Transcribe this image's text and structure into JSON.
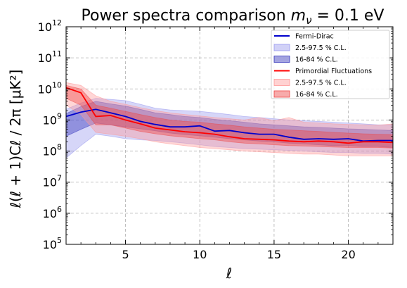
{
  "chart_data": {
    "type": "line",
    "title": "Power spectra comparison mν = 0.1 eV",
    "title_parts": {
      "text": "Power spectra comparison ",
      "math_base": "m",
      "math_sub": "ν",
      "math_rest": " = 0.1 eV"
    },
    "xlabel": "ℓ",
    "ylabel": "ℓ(ℓ + 1)Cℓ / 2π [μK²]",
    "xlim": [
      1,
      23
    ],
    "ylim": [
      100000,
      1000000000000
    ],
    "yscale": "log",
    "grid": true,
    "legend_placement": "top-right",
    "x_ticks": [
      5,
      10,
      15,
      20
    ],
    "x_tick_labels": [
      "5",
      "10",
      "15",
      "20"
    ],
    "y_ticks": [
      5,
      6,
      7,
      8,
      9,
      10,
      11,
      12
    ],
    "y_tick_base": "10",
    "x": [
      1,
      2,
      3,
      4,
      5,
      6,
      7,
      8,
      9,
      10,
      11,
      12,
      13,
      14,
      15,
      16,
      17,
      18,
      19,
      20,
      21,
      22,
      23
    ],
    "series": [
      {
        "name": "Fermi-Dirac",
        "color": "#0000cc",
        "band_2_5_color": "#9999ee",
        "band_16_color": "#3333bb",
        "center": [
          1300000000.0,
          1800000000.0,
          2200000000.0,
          1700000000.0,
          1300000000.0,
          900000000.0,
          720000000.0,
          600000000.0,
          600000000.0,
          650000000.0,
          440000000.0,
          460000000.0,
          390000000.0,
          350000000.0,
          350000000.0,
          280000000.0,
          240000000.0,
          250000000.0,
          240000000.0,
          250000000.0,
          210000000.0,
          220000000.0,
          220000000.0
        ],
        "band_2_5_lo": [
          60000000.0,
          150000000.0,
          350000000.0,
          300000000.0,
          250000000.0,
          230000000.0,
          220000000.0,
          200000000.0,
          180000000.0,
          160000000.0,
          140000000.0,
          130000000.0,
          120000000.0,
          115000000.0,
          110000000.0,
          105000000.0,
          100000000.0,
          95000000.0,
          90000000.0,
          90000000.0,
          85000000.0,
          85000000.0,
          80000000.0
        ],
        "band_2_5_hi": [
          2200000000.0,
          3500000000.0,
          5000000000.0,
          4600000000.0,
          4200000000.0,
          3200000000.0,
          2400000000.0,
          2100000000.0,
          2000000000.0,
          1900000000.0,
          1700000000.0,
          1500000000.0,
          1300000000.0,
          1200000000.0,
          1100000000.0,
          1000000000.0,
          950000000.0,
          900000000.0,
          850000000.0,
          800000000.0,
          750000000.0,
          700000000.0,
          700000000.0
        ],
        "band_16_lo": [
          300000000.0,
          500000000.0,
          800000000.0,
          700000000.0,
          600000000.0,
          520000000.0,
          450000000.0,
          380000000.0,
          340000000.0,
          310000000.0,
          280000000.0,
          250000000.0,
          230000000.0,
          210000000.0,
          200000000.0,
          180000000.0,
          170000000.0,
          160000000.0,
          150000000.0,
          150000000.0,
          140000000.0,
          140000000.0,
          130000000.0
        ],
        "band_16_hi": [
          1600000000.0,
          2700000000.0,
          4000000000.0,
          3300000000.0,
          2800000000.0,
          2200000000.0,
          1700000000.0,
          1500000000.0,
          1300000000.0,
          1200000000.0,
          1050000000.0,
          950000000.0,
          850000000.0,
          750000000.0,
          700000000.0,
          650000000.0,
          600000000.0,
          580000000.0,
          550000000.0,
          520000000.0,
          500000000.0,
          480000000.0,
          460000000.0
        ]
      },
      {
        "name": "Primordial Fluctuations",
        "color": "#ff0000",
        "band_2_5_color": "#ff9999",
        "band_16_color": "#ee4444",
        "center": [
          11000000000.0,
          7500000000.0,
          1300000000.0,
          1400000000.0,
          1000000000.0,
          750000000.0,
          550000000.0,
          480000000.0,
          420000000.0,
          390000000.0,
          350000000.0,
          290000000.0,
          250000000.0,
          240000000.0,
          230000000.0,
          210000000.0,
          200000000.0,
          210000000.0,
          200000000.0,
          180000000.0,
          200000000.0,
          200000000.0,
          190000000.0
        ],
        "band_2_5_lo": [
          3000000000.0,
          1500000000.0,
          400000000.0,
          350000000.0,
          300000000.0,
          250000000.0,
          200000000.0,
          170000000.0,
          150000000.0,
          130000000.0,
          120000000.0,
          110000000.0,
          100000000.0,
          95000000.0,
          90000000.0,
          85000000.0,
          80000000.0,
          80000000.0,
          75000000.0,
          70000000.0,
          70000000.0,
          70000000.0,
          70000000.0
        ],
        "band_2_5_hi": [
          16000000000.0,
          13000000000.0,
          6000000000.0,
          4000000000.0,
          3200000000.0,
          2500000000.0,
          2000000000.0,
          1700000000.0,
          1500000000.0,
          1350000000.0,
          1200000000.0,
          1100000000.0,
          1000000000.0,
          1200000000.0,
          950000000.0,
          1200000000.0,
          850000000.0,
          800000000.0,
          750000000.0,
          720000000.0,
          700000000.0,
          680000000.0,
          750000000.0
        ],
        "band_16_lo": [
          5000000000.0,
          3000000000.0,
          700000000.0,
          700000000.0,
          550000000.0,
          430000000.0,
          360000000.0,
          310000000.0,
          280000000.0,
          250000000.0,
          230000000.0,
          200000000.0,
          180000000.0,
          170000000.0,
          160000000.0,
          150000000.0,
          145000000.0,
          140000000.0,
          135000000.0,
          130000000.0,
          130000000.0,
          130000000.0,
          125000000.0
        ],
        "band_16_hi": [
          13000000000.0,
          10000000000.0,
          3000000000.0,
          2400000000.0,
          1900000000.0,
          1500000000.0,
          1200000000.0,
          1000000000.0,
          900000000.0,
          850000000.0,
          750000000.0,
          680000000.0,
          600000000.0,
          550000000.0,
          500000000.0,
          480000000.0,
          450000000.0,
          430000000.0,
          400000000.0,
          380000000.0,
          360000000.0,
          350000000.0,
          340000000.0
        ]
      }
    ],
    "legend": [
      {
        "label": "Fermi-Dirac",
        "kind": "line",
        "color": "#0000cc"
      },
      {
        "label": "2.5-97.5 % C.L.",
        "kind": "patch",
        "color": "#9999ee",
        "opacity": 0.45
      },
      {
        "label": "16-84 % C.L.",
        "kind": "patch",
        "color": "#3333bb",
        "opacity": 0.45
      },
      {
        "label": "Primordial Fluctuations",
        "kind": "line",
        "color": "#ff0000"
      },
      {
        "label": "2.5-97.5 % C.L.",
        "kind": "patch",
        "color": "#ff9999",
        "opacity": 0.45
      },
      {
        "label": "16-84 % C.L.",
        "kind": "patch",
        "color": "#ee4444",
        "opacity": 0.45
      }
    ]
  }
}
